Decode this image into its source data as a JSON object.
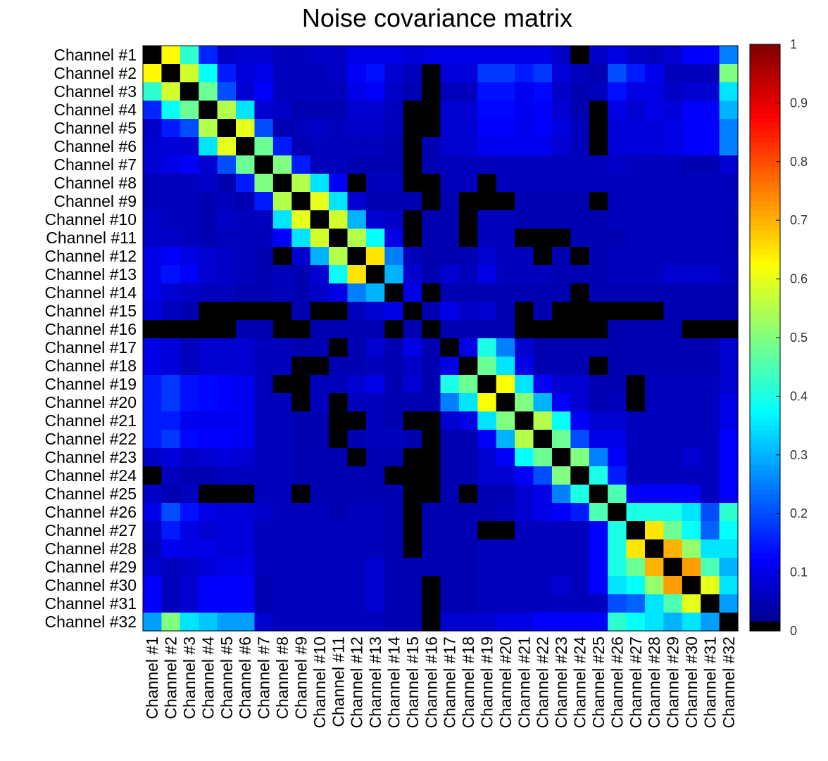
{
  "chart_data": {
    "type": "heatmap",
    "title": "Noise covariance matrix",
    "labels": [
      "Channel #1",
      "Channel #2",
      "Channel #3",
      "Channel #4",
      "Channel #5",
      "Channel #6",
      "Channel #7",
      "Channel #8",
      "Channel #9",
      "Channel #10",
      "Channel #11",
      "Channel #12",
      "Channel #13",
      "Channel #14",
      "Channel #15",
      "Channel #16",
      "Channel #17",
      "Channel #18",
      "Channel #19",
      "Channel #20",
      "Channel #21",
      "Channel #22",
      "Channel #23",
      "Channel #24",
      "Channel #25",
      "Channel #26",
      "Channel #27",
      "Channel #28",
      "Channel #29",
      "Channel #30",
      "Channel #31",
      "Channel #32"
    ],
    "colorbar": {
      "min": 0,
      "max": 1,
      "ticks": [
        "0",
        "0.1",
        "0.2",
        "0.3",
        "0.4",
        "0.5",
        "0.6",
        "0.7",
        "0.8",
        "0.9",
        "1"
      ],
      "colormap": "jet-with-black-below-0.02"
    },
    "matrix": [
      [
        0.0,
        0.63,
        0.42,
        0.16,
        0.07,
        0.08,
        0.08,
        0.06,
        0.06,
        0.07,
        0.07,
        0.1,
        0.1,
        0.1,
        0.09,
        0.1,
        0.1,
        0.1,
        0.1,
        0.1,
        0.1,
        0.1,
        0.07,
        0.0,
        0.07,
        0.1,
        0.07,
        0.06,
        0.08,
        0.12,
        0.12,
        0.25
      ],
      [
        0.63,
        0.0,
        0.58,
        0.38,
        0.15,
        0.09,
        0.1,
        0.06,
        0.06,
        0.06,
        0.07,
        0.12,
        0.14,
        0.08,
        0.06,
        0.0,
        0.09,
        0.09,
        0.18,
        0.18,
        0.15,
        0.18,
        0.09,
        0.06,
        0.05,
        0.2,
        0.15,
        0.11,
        0.06,
        0.06,
        0.06,
        0.5
      ],
      [
        0.42,
        0.58,
        0.0,
        0.48,
        0.2,
        0.08,
        0.12,
        0.06,
        0.06,
        0.06,
        0.06,
        0.1,
        0.12,
        0.07,
        0.05,
        0.0,
        0.06,
        0.06,
        0.14,
        0.14,
        0.11,
        0.13,
        0.07,
        0.05,
        0.06,
        0.14,
        0.1,
        0.1,
        0.07,
        0.08,
        0.08,
        0.35
      ],
      [
        0.16,
        0.38,
        0.48,
        0.0,
        0.55,
        0.35,
        0.08,
        0.07,
        0.05,
        0.05,
        0.05,
        0.08,
        0.08,
        0.06,
        0.0,
        0.0,
        0.08,
        0.08,
        0.13,
        0.13,
        0.11,
        0.12,
        0.08,
        0.05,
        0.0,
        0.1,
        0.08,
        0.1,
        0.09,
        0.12,
        0.12,
        0.3
      ],
      [
        0.07,
        0.15,
        0.2,
        0.55,
        0.0,
        0.6,
        0.2,
        0.05,
        0.06,
        0.07,
        0.06,
        0.07,
        0.07,
        0.06,
        0.0,
        0.0,
        0.08,
        0.08,
        0.12,
        0.12,
        0.11,
        0.12,
        0.09,
        0.06,
        0.0,
        0.09,
        0.09,
        0.09,
        0.1,
        0.12,
        0.12,
        0.25
      ],
      [
        0.08,
        0.09,
        0.08,
        0.35,
        0.6,
        0.0,
        0.48,
        0.15,
        0.05,
        0.06,
        0.06,
        0.06,
        0.06,
        0.05,
        0.0,
        0.05,
        0.08,
        0.08,
        0.11,
        0.11,
        0.11,
        0.11,
        0.08,
        0.06,
        0.0,
        0.09,
        0.09,
        0.09,
        0.1,
        0.12,
        0.12,
        0.25
      ],
      [
        0.08,
        0.1,
        0.12,
        0.08,
        0.2,
        0.48,
        0.0,
        0.5,
        0.15,
        0.06,
        0.06,
        0.05,
        0.05,
        0.05,
        0.0,
        0.05,
        0.06,
        0.06,
        0.06,
        0.06,
        0.06,
        0.06,
        0.06,
        0.06,
        0.06,
        0.07,
        0.06,
        0.06,
        0.06,
        0.05,
        0.05,
        0.08
      ],
      [
        0.06,
        0.06,
        0.06,
        0.07,
        0.05,
        0.15,
        0.5,
        0.0,
        0.55,
        0.35,
        0.12,
        0.0,
        0.06,
        0.06,
        0.0,
        0.0,
        0.06,
        0.06,
        0.0,
        0.06,
        0.06,
        0.06,
        0.06,
        0.06,
        0.06,
        0.06,
        0.06,
        0.06,
        0.06,
        0.06,
        0.06,
        0.06
      ],
      [
        0.06,
        0.06,
        0.06,
        0.05,
        0.06,
        0.05,
        0.15,
        0.55,
        0.0,
        0.6,
        0.35,
        0.08,
        0.05,
        0.05,
        0.05,
        0.0,
        0.05,
        0.0,
        0.0,
        0.0,
        0.05,
        0.05,
        0.05,
        0.05,
        0.0,
        0.06,
        0.06,
        0.06,
        0.06,
        0.06,
        0.06,
        0.06
      ],
      [
        0.07,
        0.06,
        0.06,
        0.05,
        0.07,
        0.06,
        0.06,
        0.35,
        0.6,
        0.0,
        0.58,
        0.3,
        0.08,
        0.07,
        0.0,
        0.05,
        0.05,
        0.0,
        0.06,
        0.06,
        0.05,
        0.05,
        0.05,
        0.05,
        0.05,
        0.06,
        0.06,
        0.06,
        0.06,
        0.06,
        0.06,
        0.06
      ],
      [
        0.07,
        0.07,
        0.06,
        0.05,
        0.06,
        0.06,
        0.06,
        0.12,
        0.35,
        0.58,
        0.0,
        0.55,
        0.38,
        0.1,
        0.0,
        0.05,
        0.05,
        0.0,
        0.06,
        0.06,
        0.0,
        0.0,
        0.0,
        0.05,
        0.05,
        0.05,
        0.06,
        0.06,
        0.06,
        0.06,
        0.06,
        0.06
      ],
      [
        0.1,
        0.12,
        0.1,
        0.08,
        0.07,
        0.06,
        0.05,
        0.0,
        0.08,
        0.3,
        0.55,
        0.0,
        0.65,
        0.25,
        0.06,
        0.05,
        0.05,
        0.05,
        0.08,
        0.06,
        0.06,
        0.0,
        0.05,
        0.0,
        0.05,
        0.06,
        0.06,
        0.06,
        0.06,
        0.06,
        0.06,
        0.06
      ],
      [
        0.1,
        0.14,
        0.12,
        0.08,
        0.07,
        0.06,
        0.05,
        0.06,
        0.05,
        0.08,
        0.38,
        0.65,
        0.0,
        0.3,
        0.08,
        0.05,
        0.08,
        0.06,
        0.1,
        0.06,
        0.06,
        0.06,
        0.05,
        0.05,
        0.05,
        0.06,
        0.06,
        0.06,
        0.08,
        0.08,
        0.08,
        0.06
      ],
      [
        0.1,
        0.08,
        0.07,
        0.06,
        0.06,
        0.05,
        0.05,
        0.06,
        0.05,
        0.07,
        0.1,
        0.25,
        0.3,
        0.0,
        0.1,
        0.0,
        0.05,
        0.05,
        0.05,
        0.05,
        0.05,
        0.05,
        0.05,
        0.0,
        0.05,
        0.05,
        0.05,
        0.05,
        0.05,
        0.05,
        0.05,
        0.05
      ],
      [
        0.09,
        0.06,
        0.05,
        0.0,
        0.0,
        0.0,
        0.0,
        0.0,
        0.05,
        0.0,
        0.0,
        0.06,
        0.08,
        0.1,
        0.0,
        0.05,
        0.1,
        0.07,
        0.08,
        0.05,
        0.0,
        0.05,
        0.0,
        0.0,
        0.0,
        0.0,
        0.0,
        0.0,
        0.05,
        0.05,
        0.05,
        0.05
      ],
      [
        0.0,
        0.0,
        0.0,
        0.0,
        0.0,
        0.05,
        0.05,
        0.0,
        0.0,
        0.05,
        0.05,
        0.05,
        0.05,
        0.0,
        0.05,
        0.0,
        0.05,
        0.05,
        0.05,
        0.05,
        0.0,
        0.0,
        0.0,
        0.0,
        0.0,
        0.05,
        0.05,
        0.05,
        0.05,
        0.0,
        0.0,
        0.0
      ],
      [
        0.1,
        0.09,
        0.06,
        0.08,
        0.08,
        0.08,
        0.06,
        0.06,
        0.05,
        0.05,
        0.0,
        0.05,
        0.08,
        0.05,
        0.1,
        0.05,
        0.0,
        0.1,
        0.4,
        0.25,
        0.08,
        0.05,
        0.05,
        0.05,
        0.05,
        0.05,
        0.05,
        0.05,
        0.05,
        0.05,
        0.05,
        0.08
      ],
      [
        0.1,
        0.09,
        0.06,
        0.08,
        0.08,
        0.08,
        0.06,
        0.06,
        0.0,
        0.0,
        0.05,
        0.05,
        0.06,
        0.05,
        0.07,
        0.05,
        0.1,
        0.0,
        0.48,
        0.35,
        0.1,
        0.05,
        0.05,
        0.05,
        0.0,
        0.05,
        0.05,
        0.05,
        0.05,
        0.05,
        0.05,
        0.08
      ],
      [
        0.15,
        0.18,
        0.14,
        0.13,
        0.12,
        0.11,
        0.06,
        0.0,
        0.0,
        0.06,
        0.06,
        0.08,
        0.1,
        0.05,
        0.08,
        0.05,
        0.4,
        0.48,
        0.0,
        0.62,
        0.35,
        0.12,
        0.08,
        0.08,
        0.05,
        0.05,
        0.0,
        0.06,
        0.06,
        0.06,
        0.06,
        0.08
      ],
      [
        0.15,
        0.18,
        0.14,
        0.13,
        0.12,
        0.11,
        0.06,
        0.06,
        0.0,
        0.06,
        0.0,
        0.06,
        0.06,
        0.05,
        0.05,
        0.05,
        0.25,
        0.35,
        0.62,
        0.0,
        0.5,
        0.3,
        0.12,
        0.08,
        0.05,
        0.06,
        0.0,
        0.06,
        0.06,
        0.06,
        0.06,
        0.1
      ],
      [
        0.15,
        0.15,
        0.11,
        0.11,
        0.11,
        0.11,
        0.06,
        0.06,
        0.05,
        0.05,
        0.0,
        0.0,
        0.06,
        0.05,
        0.0,
        0.0,
        0.08,
        0.1,
        0.35,
        0.5,
        0.0,
        0.55,
        0.38,
        0.12,
        0.08,
        0.08,
        0.06,
        0.06,
        0.06,
        0.06,
        0.06,
        0.1
      ],
      [
        0.15,
        0.18,
        0.13,
        0.12,
        0.12,
        0.11,
        0.06,
        0.06,
        0.05,
        0.05,
        0.0,
        0.05,
        0.06,
        0.06,
        0.05,
        0.0,
        0.05,
        0.05,
        0.12,
        0.3,
        0.55,
        0.0,
        0.48,
        0.2,
        0.1,
        0.1,
        0.06,
        0.06,
        0.06,
        0.06,
        0.06,
        0.12
      ],
      [
        0.07,
        0.09,
        0.07,
        0.08,
        0.09,
        0.08,
        0.06,
        0.06,
        0.05,
        0.05,
        0.05,
        0.0,
        0.05,
        0.05,
        0.0,
        0.0,
        0.05,
        0.05,
        0.08,
        0.12,
        0.38,
        0.48,
        0.0,
        0.5,
        0.25,
        0.12,
        0.06,
        0.06,
        0.06,
        0.08,
        0.06,
        0.12
      ],
      [
        0.0,
        0.06,
        0.05,
        0.05,
        0.06,
        0.06,
        0.06,
        0.06,
        0.05,
        0.05,
        0.05,
        0.05,
        0.05,
        0.0,
        0.0,
        0.0,
        0.05,
        0.05,
        0.08,
        0.08,
        0.12,
        0.2,
        0.5,
        0.0,
        0.4,
        0.15,
        0.06,
        0.06,
        0.06,
        0.06,
        0.06,
        0.12
      ],
      [
        0.07,
        0.05,
        0.06,
        0.0,
        0.0,
        0.0,
        0.06,
        0.06,
        0.0,
        0.05,
        0.05,
        0.05,
        0.05,
        0.05,
        0.0,
        0.0,
        0.05,
        0.0,
        0.05,
        0.05,
        0.08,
        0.1,
        0.25,
        0.4,
        0.0,
        0.45,
        0.12,
        0.12,
        0.12,
        0.12,
        0.06,
        0.12
      ],
      [
        0.1,
        0.2,
        0.14,
        0.1,
        0.09,
        0.09,
        0.07,
        0.06,
        0.06,
        0.06,
        0.05,
        0.06,
        0.06,
        0.05,
        0.0,
        0.05,
        0.05,
        0.05,
        0.05,
        0.06,
        0.08,
        0.1,
        0.12,
        0.15,
        0.45,
        0.0,
        0.4,
        0.4,
        0.4,
        0.35,
        0.2,
        0.42
      ],
      [
        0.07,
        0.15,
        0.1,
        0.08,
        0.09,
        0.09,
        0.06,
        0.06,
        0.06,
        0.06,
        0.06,
        0.06,
        0.06,
        0.05,
        0.0,
        0.05,
        0.05,
        0.05,
        0.0,
        0.0,
        0.06,
        0.06,
        0.06,
        0.06,
        0.12,
        0.4,
        0.0,
        0.65,
        0.48,
        0.38,
        0.22,
        0.38
      ],
      [
        0.06,
        0.11,
        0.1,
        0.1,
        0.09,
        0.09,
        0.06,
        0.06,
        0.06,
        0.06,
        0.06,
        0.06,
        0.06,
        0.05,
        0.0,
        0.05,
        0.05,
        0.05,
        0.06,
        0.06,
        0.06,
        0.06,
        0.06,
        0.06,
        0.12,
        0.4,
        0.65,
        0.0,
        0.7,
        0.52,
        0.35,
        0.35
      ],
      [
        0.08,
        0.06,
        0.07,
        0.09,
        0.1,
        0.1,
        0.06,
        0.06,
        0.06,
        0.06,
        0.06,
        0.06,
        0.08,
        0.05,
        0.05,
        0.05,
        0.05,
        0.05,
        0.06,
        0.06,
        0.06,
        0.06,
        0.06,
        0.06,
        0.12,
        0.4,
        0.48,
        0.7,
        0.0,
        0.72,
        0.45,
        0.3
      ],
      [
        0.12,
        0.06,
        0.08,
        0.12,
        0.12,
        0.12,
        0.05,
        0.06,
        0.06,
        0.06,
        0.06,
        0.06,
        0.08,
        0.05,
        0.05,
        0.0,
        0.05,
        0.05,
        0.06,
        0.06,
        0.06,
        0.06,
        0.08,
        0.06,
        0.12,
        0.35,
        0.38,
        0.52,
        0.72,
        0.0,
        0.6,
        0.35
      ],
      [
        0.12,
        0.06,
        0.08,
        0.12,
        0.12,
        0.12,
        0.05,
        0.06,
        0.06,
        0.06,
        0.06,
        0.06,
        0.08,
        0.05,
        0.05,
        0.0,
        0.05,
        0.05,
        0.06,
        0.06,
        0.06,
        0.06,
        0.06,
        0.06,
        0.06,
        0.2,
        0.22,
        0.35,
        0.45,
        0.6,
        0.0,
        0.28
      ],
      [
        0.28,
        0.5,
        0.35,
        0.32,
        0.28,
        0.28,
        0.08,
        0.06,
        0.06,
        0.06,
        0.06,
        0.06,
        0.06,
        0.05,
        0.05,
        0.0,
        0.08,
        0.08,
        0.08,
        0.1,
        0.1,
        0.12,
        0.12,
        0.12,
        0.12,
        0.42,
        0.38,
        0.35,
        0.3,
        0.35,
        0.28,
        0.0
      ]
    ]
  }
}
